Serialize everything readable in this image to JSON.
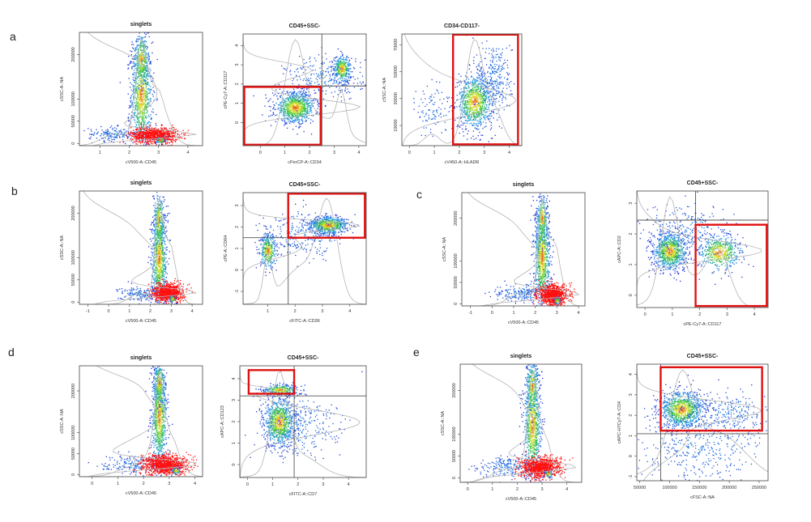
{
  "figure": {
    "colors": {
      "low": "#1f33d6",
      "mid": "#2aa0e8",
      "green": "#3ac24a",
      "yellow": "#e6e62c",
      "high": "#e8401c",
      "red_pop": "#ff1010",
      "gate_red": "#e01010",
      "gate_line": "#555555",
      "hist": "#b5b5b5",
      "frame": "#444444"
    }
  },
  "panel_labels": {
    "a": "a",
    "b": "b",
    "c": "c",
    "d": "d",
    "e": "e"
  },
  "chart_data": [
    {
      "id": "a1",
      "panel": "a",
      "type": "scatter",
      "title": "singlets",
      "xlabel": "cV500-A::CD45",
      "ylabel": "cSSC-A::NA",
      "xlim": [
        0.3,
        4.5
      ],
      "ylim": [
        -5000,
        250000
      ],
      "xticks": [
        1,
        2,
        3,
        4
      ],
      "yticks": [
        0,
        50000,
        100000,
        200000
      ],
      "xtick_labels": [
        "1",
        "2",
        "3",
        "4"
      ],
      "ytick_labels": [
        "0",
        "50000",
        "100000",
        "200000"
      ],
      "populations": [
        {
          "color": "density",
          "x": 2.4,
          "y": 110000,
          "sx": 0.18,
          "sy": 60000,
          "n": 900
        },
        {
          "color": "density",
          "x": 2.4,
          "y": 190000,
          "sx": 0.14,
          "sy": 30000,
          "n": 300
        },
        {
          "color": "blue",
          "x": 1.5,
          "y": 22000,
          "sx": 0.45,
          "sy": 8000,
          "n": 180
        },
        {
          "color": "red",
          "x": 2.85,
          "y": 20000,
          "sx": 0.4,
          "sy": 9000,
          "n": 900
        },
        {
          "color": "density",
          "x": 3.05,
          "y": 8000,
          "sx": 0.08,
          "sy": 4000,
          "n": 60
        }
      ],
      "gates": []
    },
    {
      "id": "a2",
      "panel": "a",
      "type": "scatter",
      "title": "CD45+SSC-",
      "xlabel": "cPerCP-A::CD34",
      "ylabel": "cPE-Cy7-A::CD117",
      "xlim": [
        -0.7,
        4.3
      ],
      "ylim": [
        -1.2,
        4.6
      ],
      "xticks": [
        0,
        1,
        2,
        3,
        4
      ],
      "yticks": [
        0,
        1,
        2,
        3,
        4
      ],
      "xtick_labels": [
        "0",
        "1",
        "2",
        "3",
        "4"
      ],
      "ytick_labels": [
        "0",
        "1",
        "2",
        "3",
        "4"
      ],
      "populations": [
        {
          "color": "density",
          "x": 1.4,
          "y": 0.8,
          "sx": 0.4,
          "sy": 0.4,
          "n": 900
        },
        {
          "color": "density",
          "x": 3.3,
          "y": 2.8,
          "sx": 0.18,
          "sy": 0.35,
          "n": 350
        },
        {
          "color": "blue",
          "x": 2.6,
          "y": 2.3,
          "sx": 0.8,
          "sy": 0.6,
          "n": 250
        }
      ],
      "gates": [
        {
          "type": "lines",
          "x": 2.5,
          "y": 1.9
        },
        {
          "type": "rect",
          "x0": -0.65,
          "x1": 2.45,
          "y0": -1.15,
          "y1": 1.85
        }
      ]
    },
    {
      "id": "a3",
      "panel": "a",
      "type": "scatter",
      "title": "CD34-CD117-",
      "xlabel": "cV450-A::HLADR",
      "ylabel": "cSSC-A::NA",
      "xlim": [
        -0.3,
        4.5
      ],
      "ylim": [
        -5000,
        78000
      ],
      "xticks": [
        0,
        1,
        2,
        3,
        4
      ],
      "yticks": [
        10000,
        30000,
        50000,
        70000
      ],
      "xtick_labels": [
        "0",
        "1",
        "2",
        "3",
        "4"
      ],
      "ytick_labels": [
        "10000",
        "30000",
        "50000",
        "70000"
      ],
      "populations": [
        {
          "color": "density",
          "x": 2.6,
          "y": 28000,
          "sx": 0.35,
          "sy": 10000,
          "n": 900
        },
        {
          "color": "blue",
          "x": 3.4,
          "y": 45000,
          "sx": 0.35,
          "sy": 15000,
          "n": 300
        },
        {
          "color": "blue",
          "x": 0.9,
          "y": 22000,
          "sx": 0.3,
          "sy": 10000,
          "n": 100
        }
      ],
      "gates": [
        {
          "type": "lines",
          "x": 1.75,
          "y": null
        },
        {
          "type": "rect",
          "x0": 1.75,
          "x1": 4.35,
          "y0": -4000,
          "y1": 77500
        }
      ]
    },
    {
      "id": "b1",
      "panel": "b",
      "type": "scatter",
      "title": "singlets",
      "xlabel": "cV500-A::CD45",
      "ylabel": "cSSC-A::NA",
      "xlim": [
        -1.4,
        4.5
      ],
      "ylim": [
        -5000,
        250000
      ],
      "xticks": [
        -1,
        0,
        1,
        2,
        3,
        4
      ],
      "yticks": [
        0,
        50000,
        100000,
        200000
      ],
      "xtick_labels": [
        "-1",
        "0",
        "1",
        "2",
        "3",
        "4"
      ],
      "ytick_labels": [
        "0",
        "50000",
        "100000",
        "200000"
      ],
      "populations": [
        {
          "color": "density",
          "x": 2.4,
          "y": 100000,
          "sx": 0.18,
          "sy": 55000,
          "n": 900
        },
        {
          "color": "density",
          "x": 2.4,
          "y": 185000,
          "sx": 0.13,
          "sy": 30000,
          "n": 250
        },
        {
          "color": "blue",
          "x": 1.5,
          "y": 20000,
          "sx": 0.5,
          "sy": 8000,
          "n": 160
        },
        {
          "color": "red",
          "x": 2.85,
          "y": 22000,
          "sx": 0.35,
          "sy": 10000,
          "n": 900
        },
        {
          "color": "density",
          "x": 3.05,
          "y": 8000,
          "sx": 0.08,
          "sy": 4000,
          "n": 60
        }
      ],
      "gates": []
    },
    {
      "id": "b2",
      "panel": "b",
      "type": "scatter",
      "title": "CD45+SSC-",
      "xlabel": "cFITC-A::CD36",
      "ylabel": "cPE-A::CD64",
      "xlim": [
        0.1,
        4.6
      ],
      "ylim": [
        -1.6,
        3.6
      ],
      "xticks": [
        1,
        2,
        3,
        4
      ],
      "yticks": [
        -1,
        0,
        1,
        2,
        3
      ],
      "xtick_labels": [
        "1",
        "2",
        "3",
        "4"
      ],
      "ytick_labels": [
        "-1",
        "0",
        "1",
        "2",
        "3"
      ],
      "populations": [
        {
          "color": "density",
          "x": 3.2,
          "y": 2.1,
          "sx": 0.35,
          "sy": 0.2,
          "n": 700
        },
        {
          "color": "density",
          "x": 1.0,
          "y": 0.9,
          "sx": 0.15,
          "sy": 0.4,
          "n": 350
        },
        {
          "color": "blue",
          "x": 2.3,
          "y": 1.7,
          "sx": 0.7,
          "sy": 0.5,
          "n": 300
        }
      ],
      "gates": [
        {
          "type": "lines",
          "x": 1.75,
          "y": 1.5
        },
        {
          "type": "rect",
          "x0": 1.75,
          "x1": 4.55,
          "y0": 1.5,
          "y1": 3.55
        }
      ]
    },
    {
      "id": "c1",
      "panel": "c",
      "type": "scatter",
      "title": "singlets",
      "xlabel": "cV500-A::CD45",
      "ylabel": "cSSC-A::NA",
      "xlim": [
        -1.4,
        4.3
      ],
      "ylim": [
        -5000,
        260000
      ],
      "xticks": [
        -1,
        0,
        1,
        2,
        3,
        4
      ],
      "yticks": [
        0,
        50000,
        100000,
        200000
      ],
      "xtick_labels": [
        "-1",
        "0",
        "1",
        "2",
        "3",
        "4"
      ],
      "ytick_labels": [
        "0",
        "50000",
        "100000",
        "200000"
      ],
      "populations": [
        {
          "color": "density",
          "x": 2.3,
          "y": 110000,
          "sx": 0.18,
          "sy": 60000,
          "n": 900
        },
        {
          "color": "density",
          "x": 2.3,
          "y": 200000,
          "sx": 0.13,
          "sy": 30000,
          "n": 250
        },
        {
          "color": "blue",
          "x": 1.3,
          "y": 25000,
          "sx": 0.55,
          "sy": 10000,
          "n": 180
        },
        {
          "color": "red",
          "x": 2.8,
          "y": 22000,
          "sx": 0.35,
          "sy": 12000,
          "n": 900
        },
        {
          "color": "density",
          "x": 3.0,
          "y": 8000,
          "sx": 0.08,
          "sy": 4000,
          "n": 60
        }
      ],
      "gates": []
    },
    {
      "id": "c2",
      "panel": "c",
      "type": "scatter",
      "title": "CD45+SSC-",
      "xlabel": "cPE-Cy7-A::CD117",
      "ylabel": "cAPC-A::CD2",
      "xlim": [
        -0.3,
        4.5
      ],
      "ylim": [
        -0.4,
        3.4
      ],
      "xticks": [
        0,
        1,
        2,
        3,
        4
      ],
      "yticks": [
        0,
        1,
        2,
        3
      ],
      "xtick_labels": [
        "0",
        "1",
        "2",
        "3",
        "4"
      ],
      "ytick_labels": [
        "0",
        "1",
        "2",
        "3"
      ],
      "populations": [
        {
          "color": "density",
          "x": 0.9,
          "y": 1.45,
          "sx": 0.3,
          "sy": 0.3,
          "n": 900
        },
        {
          "color": "density",
          "x": 2.7,
          "y": 1.4,
          "sx": 0.4,
          "sy": 0.3,
          "n": 500
        },
        {
          "color": "blue",
          "x": 1.5,
          "y": 2.0,
          "sx": 0.8,
          "sy": 0.5,
          "n": 300
        }
      ],
      "gates": [
        {
          "type": "lines",
          "x": 1.85,
          "y": 2.45
        },
        {
          "type": "rect",
          "x0": 1.85,
          "x1": 4.45,
          "y0": -0.35,
          "y1": 2.3
        }
      ]
    },
    {
      "id": "d1",
      "panel": "d",
      "type": "scatter",
      "title": "singlets",
      "xlabel": "cV500-A::CD45",
      "ylabel": "cSSC-A::NA",
      "xlim": [
        -0.5,
        4.3
      ],
      "ylim": [
        -5000,
        260000
      ],
      "xticks": [
        0,
        1,
        2,
        3,
        4
      ],
      "yticks": [
        0,
        50000,
        100000,
        200000
      ],
      "xtick_labels": [
        "0",
        "1",
        "2",
        "3",
        "4"
      ],
      "ytick_labels": [
        "0",
        "50000",
        "100000",
        "200000"
      ],
      "populations": [
        {
          "color": "density",
          "x": 2.6,
          "y": 140000,
          "sx": 0.15,
          "sy": 60000,
          "n": 900
        },
        {
          "color": "density",
          "x": 2.6,
          "y": 220000,
          "sx": 0.11,
          "sy": 25000,
          "n": 250
        },
        {
          "color": "blue",
          "x": 1.6,
          "y": 25000,
          "sx": 0.6,
          "sy": 10000,
          "n": 200
        },
        {
          "color": "red",
          "x": 2.8,
          "y": 25000,
          "sx": 0.45,
          "sy": 12000,
          "n": 1000
        },
        {
          "color": "density",
          "x": 3.25,
          "y": 10000,
          "sx": 0.09,
          "sy": 4000,
          "n": 60
        }
      ],
      "gates": []
    },
    {
      "id": "d2",
      "panel": "d",
      "type": "scatter",
      "title": "CD45+SSC-",
      "xlabel": "cFITC-A::CD7",
      "ylabel": "cAPC-A::CD123",
      "xlim": [
        -0.3,
        4.7
      ],
      "ylim": [
        -0.6,
        4.6
      ],
      "xticks": [
        0,
        1,
        2,
        3,
        4
      ],
      "yticks": [
        0,
        1,
        2,
        3,
        4
      ],
      "xtick_labels": [
        "0",
        "1",
        "2",
        "3",
        "4"
      ],
      "ytick_labels": [
        "0",
        "1",
        "2",
        "3",
        "4"
      ],
      "populations": [
        {
          "color": "density",
          "x": 1.25,
          "y": 2.0,
          "sx": 0.3,
          "sy": 0.55,
          "n": 900
        },
        {
          "color": "density",
          "x": 1.3,
          "y": 3.5,
          "sx": 0.35,
          "sy": 0.12,
          "n": 300
        },
        {
          "color": "blue",
          "x": 2.0,
          "y": 1.8,
          "sx": 0.8,
          "sy": 0.8,
          "n": 300
        }
      ],
      "gates": [
        {
          "type": "lines",
          "x": 1.85,
          "y": 3.2
        },
        {
          "type": "rect",
          "x0": 0.05,
          "x1": 1.85,
          "y0": 3.3,
          "y1": 4.4
        }
      ]
    },
    {
      "id": "e1",
      "panel": "e",
      "type": "scatter",
      "title": "singlets",
      "xlabel": "cV500-A::CD45",
      "ylabel": "cSSC-A::NA",
      "xlim": [
        -0.3,
        4.6
      ],
      "ylim": [
        -10000,
        260000
      ],
      "xticks": [
        0,
        1,
        2,
        3,
        4
      ],
      "yticks": [
        0,
        50000,
        100000,
        200000
      ],
      "xtick_labels": [
        "0",
        "1",
        "2",
        "3",
        "4"
      ],
      "ytick_labels": [
        "0",
        "50000",
        "100000",
        "200000"
      ],
      "populations": [
        {
          "color": "density",
          "x": 2.6,
          "y": 120000,
          "sx": 0.17,
          "sy": 65000,
          "n": 900
        },
        {
          "color": "density",
          "x": 2.6,
          "y": 210000,
          "sx": 0.13,
          "sy": 30000,
          "n": 250
        },
        {
          "color": "blue",
          "x": 1.6,
          "y": 25000,
          "sx": 0.6,
          "sy": 12000,
          "n": 220
        },
        {
          "color": "red",
          "x": 2.9,
          "y": 25000,
          "sx": 0.4,
          "sy": 12000,
          "n": 900
        },
        {
          "color": "density",
          "x": 3.25,
          "y": 10000,
          "sx": 0.08,
          "sy": 4000,
          "n": 60
        }
      ],
      "gates": []
    },
    {
      "id": "e2",
      "panel": "e",
      "type": "scatter",
      "title": "CD45+SSC-",
      "xlabel": "cFSC-A::NA",
      "ylabel": "cAPC-H7Cy7-A::CD4",
      "xlim": [
        45000,
        265000
      ],
      "ylim": [
        -1.2,
        4.5
      ],
      "xticks": [
        50000,
        100000,
        150000,
        200000,
        250000
      ],
      "yticks": [
        -1,
        0,
        1,
        2,
        3,
        4
      ],
      "xtick_labels": [
        "50000",
        "100000",
        "150000",
        "200000",
        "250000"
      ],
      "ytick_labels": [
        "-1",
        "0",
        "1",
        "2",
        "3",
        "4"
      ],
      "populations": [
        {
          "color": "density",
          "x": 120000,
          "y": 2.3,
          "sx": 18000,
          "sy": 0.45,
          "n": 900
        },
        {
          "color": "blue",
          "x": 150000,
          "y": 0.8,
          "sx": 55000,
          "sy": 1.0,
          "n": 500
        },
        {
          "color": "blue",
          "x": 200000,
          "y": 2.2,
          "sx": 40000,
          "sy": 0.5,
          "n": 200
        }
      ],
      "gates": [
        {
          "type": "lines",
          "x": 85000,
          "y": 1.1
        },
        {
          "type": "rect",
          "x0": 85000,
          "x1": 255000,
          "y0": 1.25,
          "y1": 4.35
        }
      ]
    }
  ]
}
